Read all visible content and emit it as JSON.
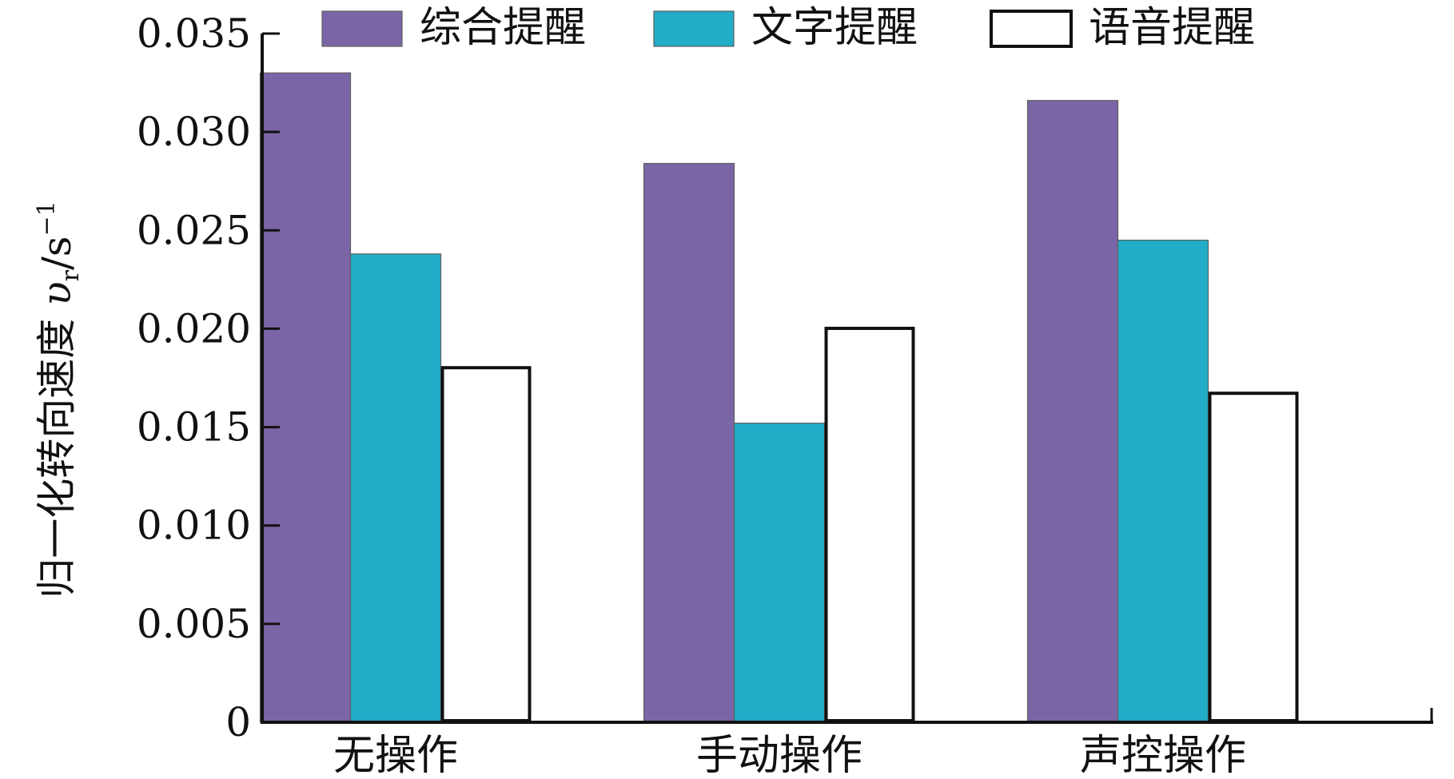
{
  "chart_data": {
    "type": "bar",
    "title": "",
    "xlabel": "",
    "ylabel": "归一化转向速度 υr/s⁻¹",
    "ylabel_parts": {
      "main": "归一化转向速度 ",
      "symbol": "υ",
      "sub": "r",
      "unit": "/s",
      "sup": "−1"
    },
    "categories": [
      "无操作",
      "手动操作",
      "声控操作"
    ],
    "series": [
      {
        "name": "综合提醒",
        "values": [
          0.033,
          0.0284,
          0.0316
        ],
        "color": "#7a66a6"
      },
      {
        "name": "文字提醒",
        "values": [
          0.0238,
          0.0152,
          0.0245
        ],
        "color": "#21acc8"
      },
      {
        "name": "语音提醒",
        "values": [
          0.0181,
          0.0201,
          0.0168
        ],
        "color": "#ffffff"
      }
    ],
    "ylim": [
      0,
      0.035
    ],
    "yticks": [
      "0",
      "0.005",
      "0.010",
      "0.015",
      "0.020",
      "0.025",
      "0.030",
      "0.035"
    ],
    "ytick_values": [
      0,
      0.005,
      0.01,
      0.015,
      0.02,
      0.025,
      0.03,
      0.035
    ],
    "grid": false,
    "legend_position": "top"
  }
}
